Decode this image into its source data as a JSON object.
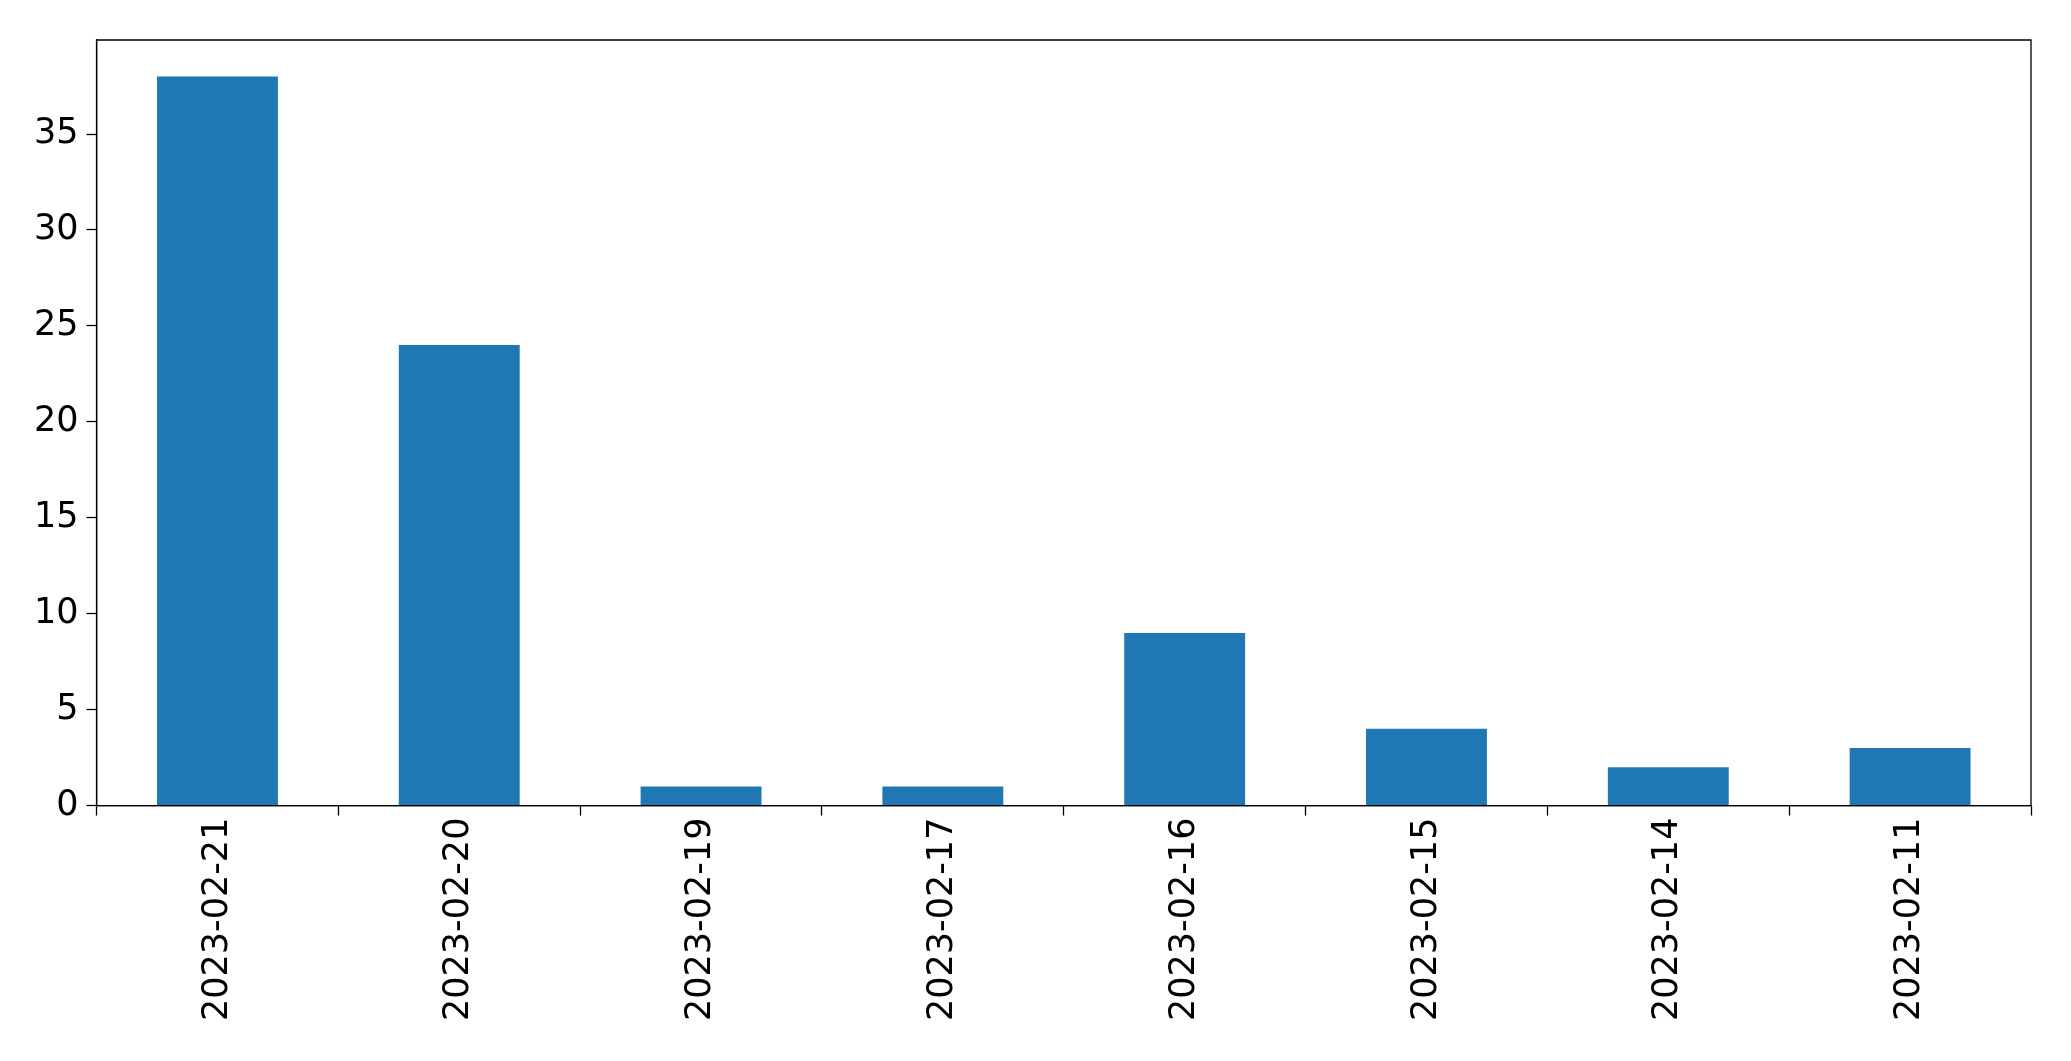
{
  "chart_data": {
    "type": "bar",
    "categories": [
      "2023-02-21",
      "2023-02-20",
      "2023-02-19",
      "2023-02-17",
      "2023-02-16",
      "2023-02-15",
      "2023-02-14",
      "2023-02-11"
    ],
    "values": [
      38,
      24,
      1,
      1,
      9,
      4,
      2,
      3
    ],
    "color": "#1f77b4",
    "ylim": [
      0,
      39.9
    ],
    "yticks": [
      0,
      5,
      10,
      15,
      20,
      25,
      30,
      35
    ]
  }
}
